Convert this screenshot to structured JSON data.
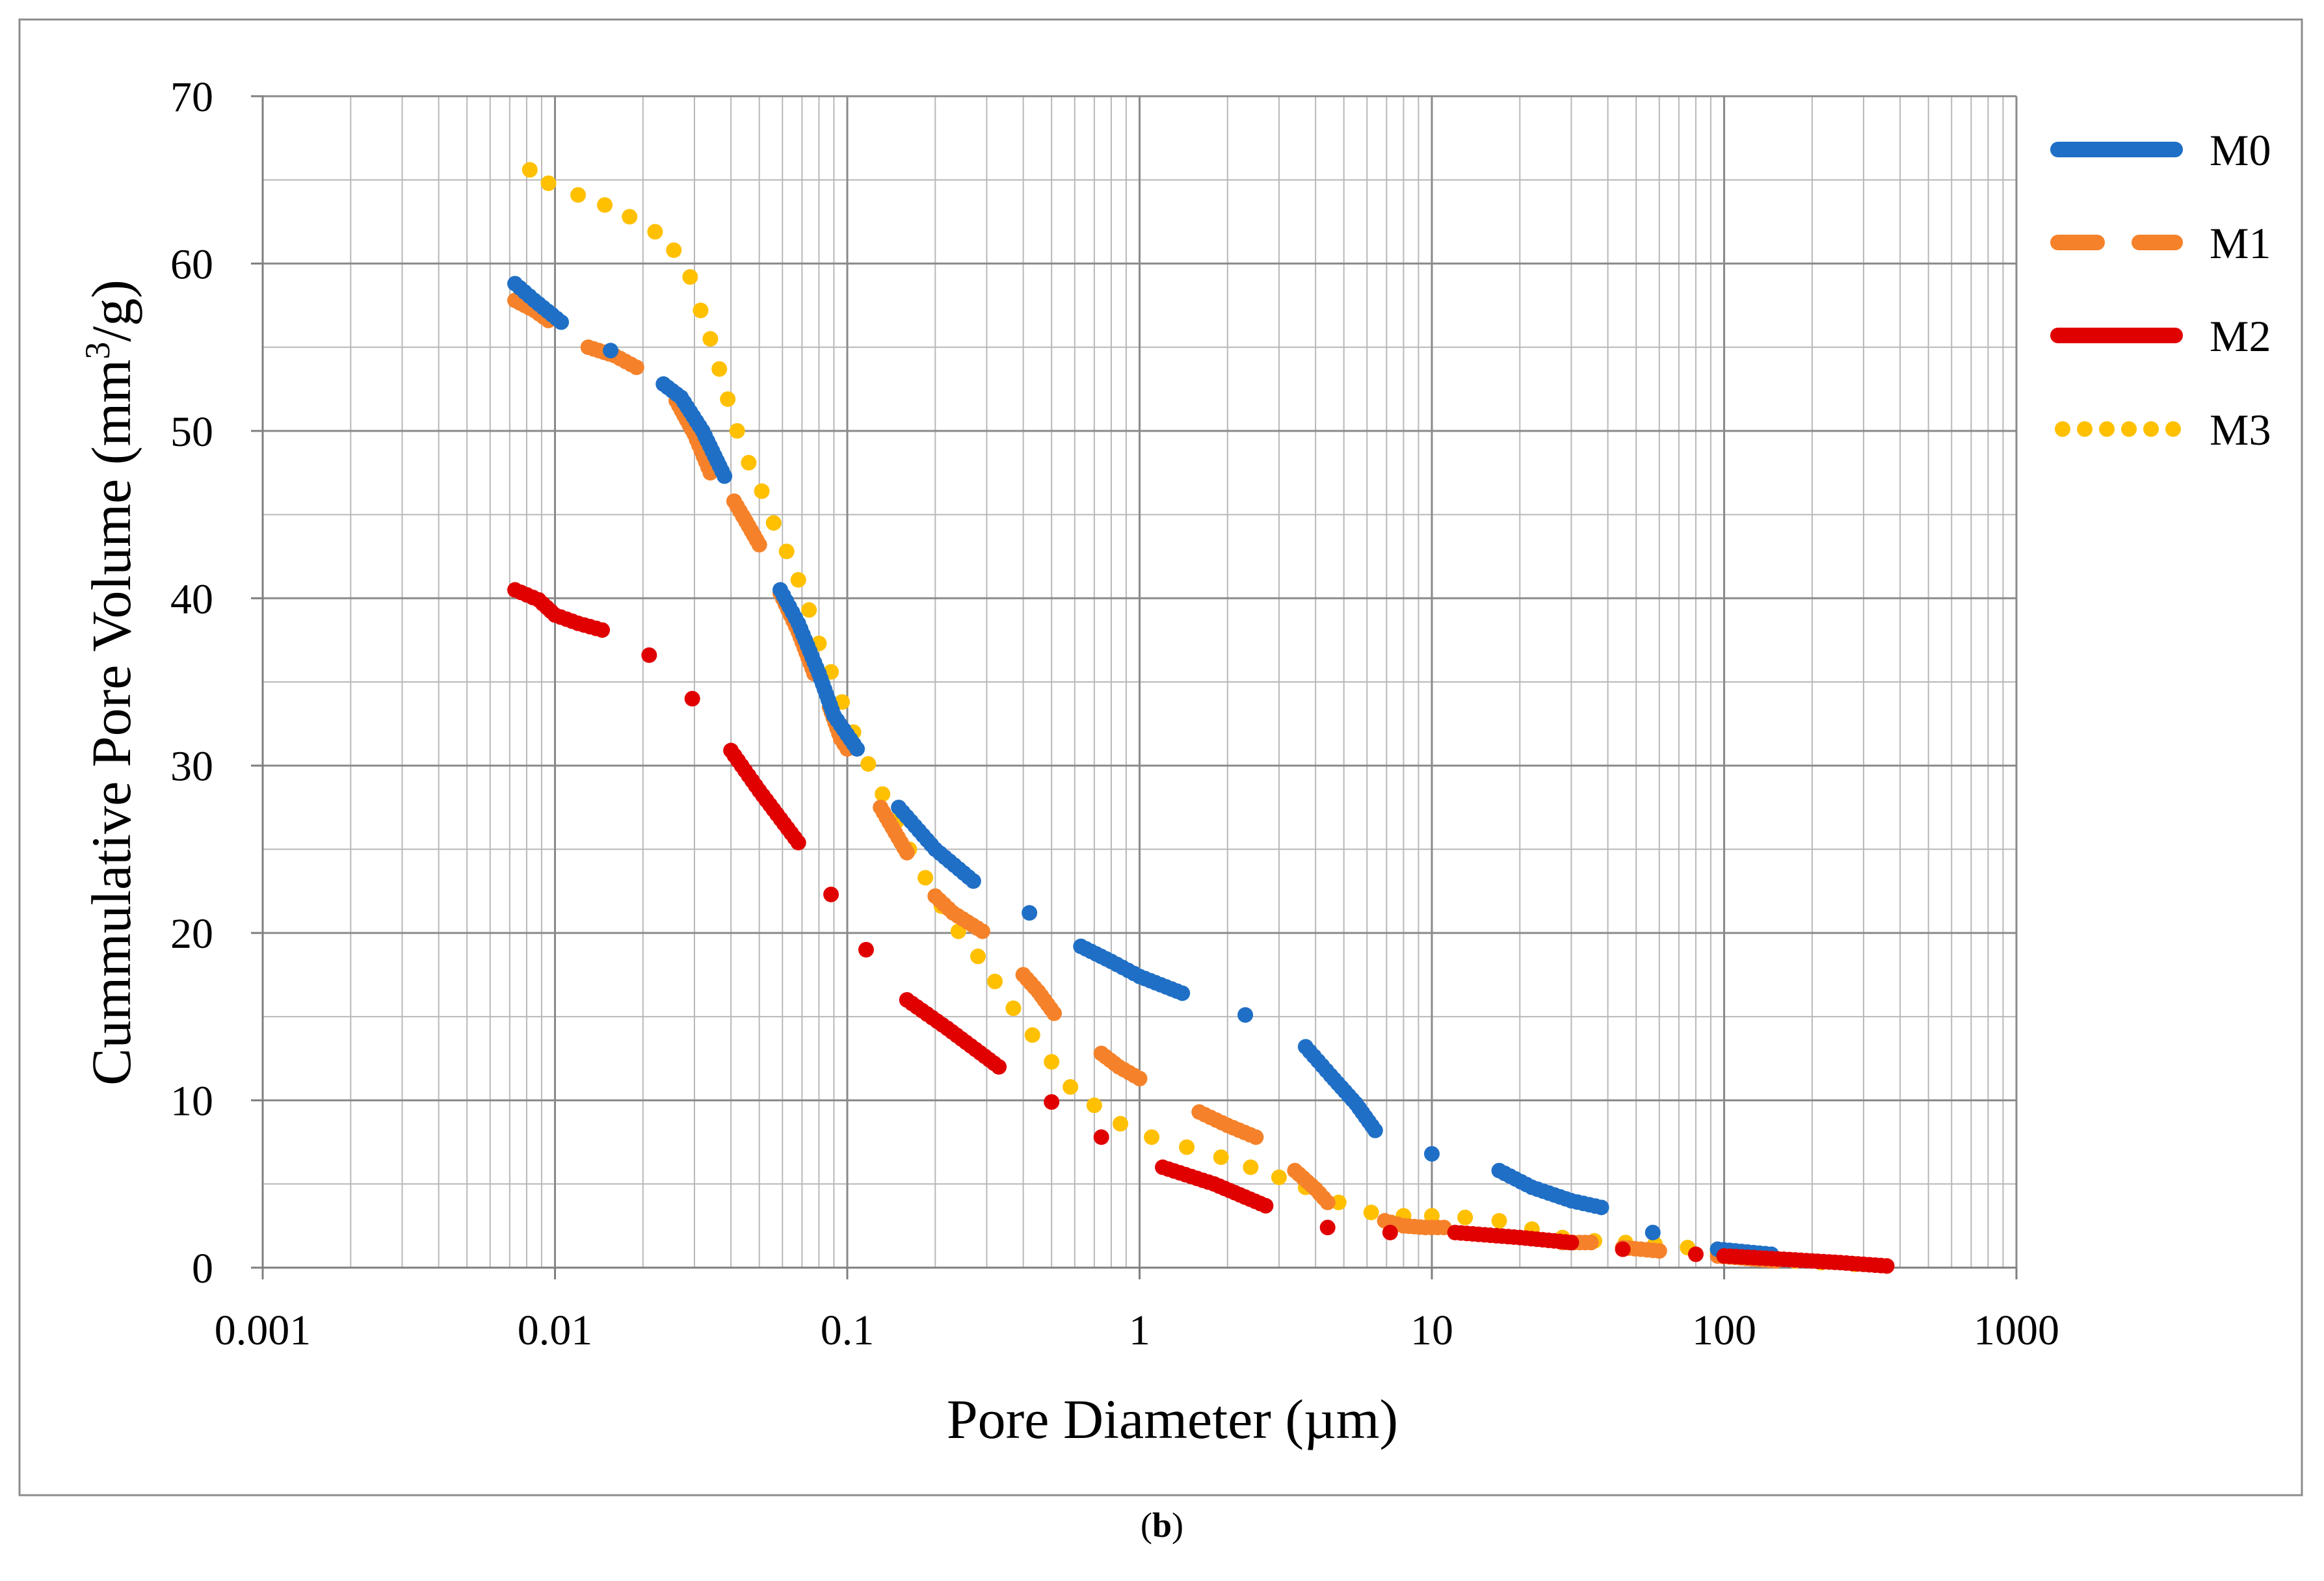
{
  "chart_data": {
    "type": "scatter",
    "title": "",
    "xlabel": "Pore Diameter (µm)",
    "ylabel_parts": {
      "pre": "Cummulative Pore Volume (mm",
      "sup": "3",
      "post": "/g)"
    },
    "x_scale": "log",
    "xlim": [
      0.001,
      1000
    ],
    "ylim": [
      0,
      70
    ],
    "x_tick_labels": [
      "0.001",
      "0.01",
      "0.1",
      "1",
      "10",
      "100",
      "1000"
    ],
    "x_tick_values": [
      0.001,
      0.01,
      0.1,
      1,
      10,
      100,
      1000
    ],
    "y_tick_labels": [
      "0",
      "10",
      "20",
      "30",
      "40",
      "50",
      "60",
      "70"
    ],
    "y_tick_values": [
      0,
      10,
      20,
      30,
      40,
      50,
      60,
      70
    ],
    "grid": true,
    "legend_position": "right",
    "series": [
      {
        "name": "M0",
        "color": "#1F6FC6",
        "legend_style": "solid",
        "segments": [
          [
            [
              0.0073,
              58.8
            ],
            [
              0.0085,
              57.8
            ],
            [
              0.0105,
              56.5
            ]
          ],
          [
            [
              0.0155,
              54.8
            ]
          ],
          [
            [
              0.0235,
              52.8
            ],
            [
              0.027,
              52.0
            ],
            [
              0.032,
              50.0
            ],
            [
              0.038,
              47.3
            ]
          ],
          [
            [
              0.059,
              40.5
            ],
            [
              0.068,
              38.5
            ],
            [
              0.08,
              35.5
            ],
            [
              0.09,
              33.0
            ],
            [
              0.108,
              31.0
            ]
          ],
          [
            [
              0.15,
              27.5
            ],
            [
              0.2,
              25.0
            ],
            [
              0.27,
              23.1
            ]
          ],
          [
            [
              0.42,
              21.2
            ]
          ],
          [
            [
              0.63,
              19.2
            ],
            [
              0.8,
              18.3
            ],
            [
              1.0,
              17.4
            ],
            [
              1.4,
              16.4
            ]
          ],
          [
            [
              2.3,
              15.1
            ]
          ],
          [
            [
              3.7,
              13.2
            ],
            [
              4.5,
              11.5
            ],
            [
              5.5,
              9.8
            ],
            [
              6.4,
              8.2
            ]
          ],
          [
            [
              10.0,
              6.8
            ]
          ],
          [
            [
              17.0,
              5.8
            ],
            [
              22.0,
              4.8
            ],
            [
              30.0,
              4.0
            ],
            [
              38.0,
              3.6
            ]
          ],
          [
            [
              57.0,
              2.1
            ]
          ],
          [
            [
              95.0,
              1.1
            ],
            [
              145.0,
              0.8
            ]
          ]
        ]
      },
      {
        "name": "M1",
        "color": "#F5822A",
        "legend_style": "dashed",
        "segments": [
          [
            [
              0.0073,
              57.8
            ],
            [
              0.0085,
              57.2
            ],
            [
              0.0095,
              56.6
            ]
          ],
          [
            [
              0.013,
              55.0
            ],
            [
              0.016,
              54.5
            ],
            [
              0.019,
              53.8
            ]
          ],
          [
            [
              0.026,
              51.8
            ],
            [
              0.03,
              49.8
            ],
            [
              0.034,
              47.5
            ]
          ],
          [
            [
              0.041,
              45.8
            ],
            [
              0.045,
              44.6
            ],
            [
              0.05,
              43.2
            ]
          ],
          [
            [
              0.059,
              40.3
            ],
            [
              0.068,
              38.0
            ],
            [
              0.077,
              35.5
            ]
          ],
          [
            [
              0.087,
              33.5
            ],
            [
              0.095,
              31.6
            ],
            [
              0.1,
              31.0
            ]
          ],
          [
            [
              0.13,
              27.5
            ],
            [
              0.16,
              24.8
            ]
          ],
          [
            [
              0.2,
              22.2
            ],
            [
              0.23,
              21.2
            ],
            [
              0.29,
              20.1
            ]
          ],
          [
            [
              0.4,
              17.5
            ],
            [
              0.45,
              16.5
            ],
            [
              0.51,
              15.2
            ]
          ],
          [
            [
              0.74,
              12.8
            ],
            [
              0.85,
              12.0
            ],
            [
              1.0,
              11.3
            ]
          ],
          [
            [
              1.6,
              9.3
            ],
            [
              2.0,
              8.5
            ],
            [
              2.5,
              7.8
            ]
          ],
          [
            [
              3.4,
              5.8
            ],
            [
              4.0,
              4.7
            ],
            [
              4.4,
              3.9
            ]
          ],
          [
            [
              6.9,
              2.8
            ],
            [
              8.0,
              2.5
            ],
            [
              9.5,
              2.4
            ],
            [
              11.0,
              2.4
            ]
          ],
          [
            [
              28.0,
              1.5
            ],
            [
              35.0,
              1.5
            ]
          ],
          [
            [
              45.0,
              1.2
            ],
            [
              60.0,
              1.0
            ]
          ],
          [
            [
              95.0,
              0.7
            ],
            [
              130.0,
              0.5
            ],
            [
              150.0,
              0.4
            ]
          ]
        ]
      },
      {
        "name": "M2",
        "color": "#E00000",
        "legend_style": "solid",
        "segments": [
          [
            [
              0.0073,
              40.5
            ],
            [
              0.0088,
              39.9
            ],
            [
              0.01,
              39.0
            ],
            [
              0.012,
              38.5
            ],
            [
              0.0145,
              38.1
            ]
          ],
          [
            [
              0.021,
              36.6
            ]
          ],
          [
            [
              0.0295,
              34.0
            ]
          ],
          [
            [
              0.04,
              30.9
            ],
            [
              0.05,
              28.5
            ],
            [
              0.068,
              25.4
            ]
          ],
          [
            [
              0.088,
              22.3
            ]
          ],
          [
            [
              0.116,
              19.0
            ]
          ],
          [
            [
              0.16,
              16.0
            ],
            [
              0.22,
              14.3
            ],
            [
              0.33,
              12.0
            ]
          ],
          [
            [
              0.5,
              9.9
            ]
          ],
          [
            [
              0.74,
              7.8
            ]
          ],
          [
            [
              1.2,
              6.0
            ],
            [
              1.8,
              5.0
            ],
            [
              2.7,
              3.7
            ]
          ],
          [
            [
              4.4,
              2.4
            ]
          ],
          [
            [
              7.2,
              2.1
            ]
          ],
          [
            [
              12.0,
              2.1
            ],
            [
              20.0,
              1.8
            ],
            [
              30.0,
              1.5
            ]
          ],
          [
            [
              45.0,
              1.1
            ]
          ],
          [
            [
              80.0,
              0.8
            ]
          ],
          [
            [
              100.0,
              0.7
            ],
            [
              160.0,
              0.5
            ],
            [
              250.0,
              0.3
            ],
            [
              360.0,
              0.1
            ]
          ]
        ]
      },
      {
        "name": "M3",
        "color": "#FFC000",
        "legend_style": "dotted",
        "segments": [
          [
            [
              0.0082,
              65.6
            ],
            [
              0.0095,
              64.8
            ],
            [
              0.012,
              64.1
            ],
            [
              0.0148,
              63.5
            ],
            [
              0.018,
              62.8
            ],
            [
              0.022,
              61.9
            ],
            [
              0.0255,
              60.8
            ],
            [
              0.029,
              59.2
            ],
            [
              0.0315,
              57.2
            ],
            [
              0.034,
              55.5
            ],
            [
              0.0365,
              53.7
            ],
            [
              0.039,
              51.9
            ],
            [
              0.042,
              50.0
            ],
            [
              0.046,
              48.1
            ],
            [
              0.051,
              46.4
            ],
            [
              0.056,
              44.5
            ],
            [
              0.062,
              42.8
            ],
            [
              0.068,
              41.1
            ],
            [
              0.074,
              39.3
            ],
            [
              0.08,
              37.3
            ],
            [
              0.088,
              35.6
            ],
            [
              0.096,
              33.8
            ],
            [
              0.105,
              32.0
            ],
            [
              0.118,
              30.1
            ],
            [
              0.132,
              28.3
            ],
            [
              0.148,
              26.7
            ],
            [
              0.163,
              25.0
            ],
            [
              0.185,
              23.3
            ],
            [
              0.21,
              21.6
            ],
            [
              0.24,
              20.1
            ],
            [
              0.28,
              18.6
            ],
            [
              0.32,
              17.1
            ],
            [
              0.37,
              15.5
            ],
            [
              0.43,
              13.9
            ],
            [
              0.5,
              12.3
            ],
            [
              0.58,
              10.8
            ],
            [
              0.7,
              9.7
            ],
            [
              0.86,
              8.6
            ],
            [
              1.1,
              7.8
            ],
            [
              1.45,
              7.2
            ],
            [
              1.9,
              6.6
            ],
            [
              2.4,
              6.0
            ],
            [
              3.0,
              5.4
            ],
            [
              3.7,
              4.8
            ],
            [
              4.8,
              3.9
            ],
            [
              6.2,
              3.3
            ],
            [
              8.0,
              3.1
            ],
            [
              10.0,
              3.1
            ],
            [
              13.0,
              3.0
            ],
            [
              17.0,
              2.8
            ],
            [
              22.0,
              2.3
            ],
            [
              28.0,
              1.8
            ],
            [
              36.0,
              1.6
            ],
            [
              46.0,
              1.5
            ],
            [
              58.0,
              1.4
            ],
            [
              75.0,
              1.2
            ],
            [
              95.0,
              0.9
            ],
            [
              120.0,
              0.7
            ],
            [
              150.0,
              0.5
            ],
            [
              175.0,
              0.4
            ],
            [
              215.0,
              0.3
            ],
            [
              280.0,
              0.2
            ],
            [
              360.0,
              0.1
            ]
          ]
        ]
      }
    ]
  },
  "caption": {
    "open": "(",
    "letter": "b",
    "close": ")"
  }
}
